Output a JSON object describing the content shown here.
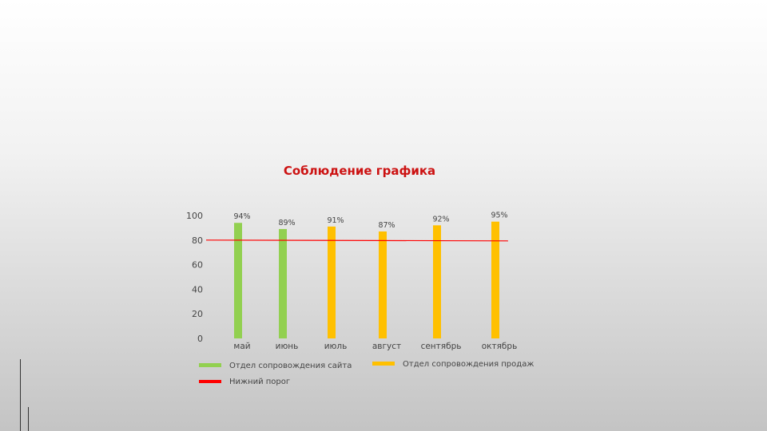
{
  "chart_data": {
    "type": "bar",
    "title": "Соблюдение графика",
    "categories": [
      "май",
      "июнь",
      "июль",
      "август",
      "сентябрь",
      "октябрь"
    ],
    "values": [
      94,
      89,
      91,
      87,
      92,
      95
    ],
    "data_labels": [
      "94%",
      "89%",
      "91%",
      "87%",
      "92%",
      "95%"
    ],
    "bar_colors": [
      "#92d050",
      "#92d050",
      "#ffc000",
      "#ffc000",
      "#ffc000",
      "#ffc000"
    ],
    "ylim": [
      0,
      100
    ],
    "yticks": [
      "0",
      "20",
      "40",
      "60",
      "80",
      "100"
    ],
    "threshold": {
      "value": 80,
      "color": "#ff0000",
      "label": "Нижний порог"
    },
    "legend": [
      {
        "label": "Отдел сопровождения сайта",
        "color": "#92d050"
      },
      {
        "label": "Отдел сопровождения продаж",
        "color": "#ffc000"
      },
      {
        "label": "Нижний порог",
        "color": "#ff0000"
      }
    ],
    "legend_position": "bottom",
    "grid": false
  }
}
